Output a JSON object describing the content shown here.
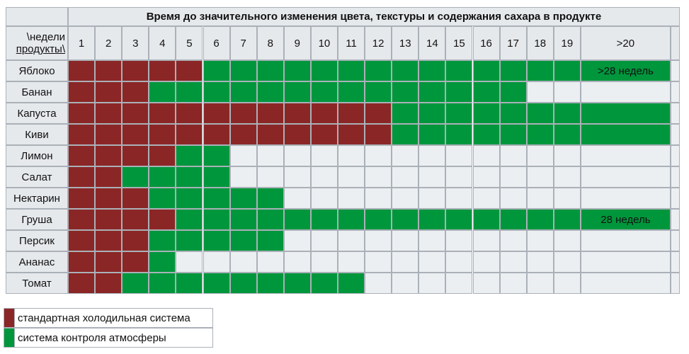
{
  "table": {
    "title": "Время до значительного изменения цвета, текстуры и содержания сахара в продукте",
    "corner_top": "\\недели",
    "corner_bottom": "продукты\\",
    "columns": [
      1,
      2,
      3,
      4,
      5,
      6,
      7,
      8,
      9,
      10,
      11,
      12,
      13,
      14,
      15,
      16,
      17,
      18,
      19,
      ">20"
    ],
    "rows": [
      {
        "product": "Яблоко",
        "standard_weeks": 5,
        "atmosphere_weeks": 20,
        "note": ">28 недель"
      },
      {
        "product": "Банан",
        "standard_weeks": 3,
        "atmosphere_weeks": 17
      },
      {
        "product": "Капуста",
        "standard_weeks": 12,
        "atmosphere_weeks": 20
      },
      {
        "product": "Киви",
        "standard_weeks": 12,
        "atmosphere_weeks": 20
      },
      {
        "product": "Лимон",
        "standard_weeks": 4,
        "atmosphere_weeks": 6
      },
      {
        "product": "Салат",
        "standard_weeks": 2,
        "atmosphere_weeks": 6
      },
      {
        "product": "Нектарин",
        "standard_weeks": 3,
        "atmosphere_weeks": 8
      },
      {
        "product": "Груша",
        "standard_weeks": 4,
        "atmosphere_weeks": 20,
        "note": "28 недель"
      },
      {
        "product": "Персик",
        "standard_weeks": 3,
        "atmosphere_weeks": 8
      },
      {
        "product": "Ананас",
        "standard_weeks": 3,
        "atmosphere_weeks": 4
      },
      {
        "product": "Томат",
        "standard_weeks": 2,
        "atmosphere_weeks": 11
      }
    ]
  },
  "legend": {
    "items": [
      {
        "label": "стандартная холодильная система",
        "color": "#8b2626"
      },
      {
        "label": "система контроля атмосферы",
        "color": "#00963c"
      }
    ]
  }
}
